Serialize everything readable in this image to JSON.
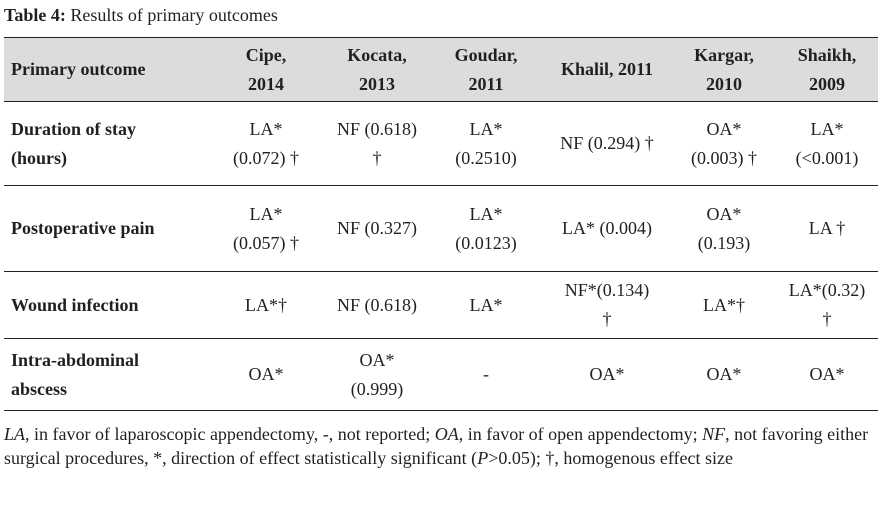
{
  "caption": {
    "label": "Table 4:",
    "title": "Results of primary outcomes"
  },
  "table": {
    "header": {
      "outcome": "Primary outcome",
      "studies": [
        {
          "line1": "Cipe,",
          "line2": "2014"
        },
        {
          "line1": "Kocata,",
          "line2": "2013"
        },
        {
          "line1": "Goudar,",
          "line2": "2011"
        },
        {
          "line1": "Khalil, 2011",
          "line2": ""
        },
        {
          "line1": "Kargar,",
          "line2": "2010"
        },
        {
          "line1": "Shaikh,",
          "line2": "2009"
        }
      ]
    },
    "rows": [
      {
        "outcome": {
          "line1": "Duration of stay",
          "line2": "(hours)"
        },
        "cells": [
          {
            "line1": "LA*",
            "line2": "(0.072) †"
          },
          {
            "line1": "NF (0.618)",
            "line2": "†"
          },
          {
            "line1": "LA*",
            "line2": "(0.2510)"
          },
          {
            "line1": "NF (0.294) †",
            "line2": ""
          },
          {
            "line1": "OA*",
            "line2": "(0.003) †"
          },
          {
            "line1": "LA*",
            "line2": "(<0.001)"
          }
        ]
      },
      {
        "outcome": {
          "line1": "Postoperative pain",
          "line2": ""
        },
        "cells": [
          {
            "line1": "LA*",
            "line2": "(0.057) †"
          },
          {
            "line1": "NF (0.327)",
            "line2": ""
          },
          {
            "line1": "LA*",
            "line2": "(0.0123)"
          },
          {
            "line1": "LA* (0.004)",
            "line2": ""
          },
          {
            "line1": "OA*",
            "line2": "(0.193)"
          },
          {
            "line1": "LA †",
            "line2": ""
          }
        ]
      },
      {
        "outcome": {
          "line1": "Wound infection",
          "line2": ""
        },
        "cells": [
          {
            "line1": "LA*†",
            "line2": ""
          },
          {
            "line1": "NF (0.618)",
            "line2": ""
          },
          {
            "line1": "LA*",
            "line2": ""
          },
          {
            "line1": "NF*(0.134)",
            "line2": "†"
          },
          {
            "line1": "LA*†",
            "line2": ""
          },
          {
            "line1": "LA*(0.32)",
            "line2": "†"
          }
        ]
      },
      {
        "outcome": {
          "line1": "Intra-abdominal",
          "line2": "abscess"
        },
        "cells": [
          {
            "line1": "OA*",
            "line2": ""
          },
          {
            "line1": "OA*",
            "line2": "(0.999)"
          },
          {
            "line1": "-",
            "line2": ""
          },
          {
            "line1": "OA*",
            "line2": ""
          },
          {
            "line1": "OA*",
            "line2": ""
          },
          {
            "line1": "OA*",
            "line2": ""
          }
        ]
      }
    ]
  },
  "footnote": {
    "la_abbr": "LA",
    "la_text": ", in favor of laparoscopic appendectomy, -, not reported; ",
    "oa_abbr": "OA",
    "oa_text": ", in favor of open appendectomy; ",
    "nf_abbr": "NF",
    "nf_text": ", not favoring either surgical procedures, *, direction of effect statistically significant (",
    "p_symbol": "P",
    "p_text": ">0.05); †, homogenous effect size"
  }
}
